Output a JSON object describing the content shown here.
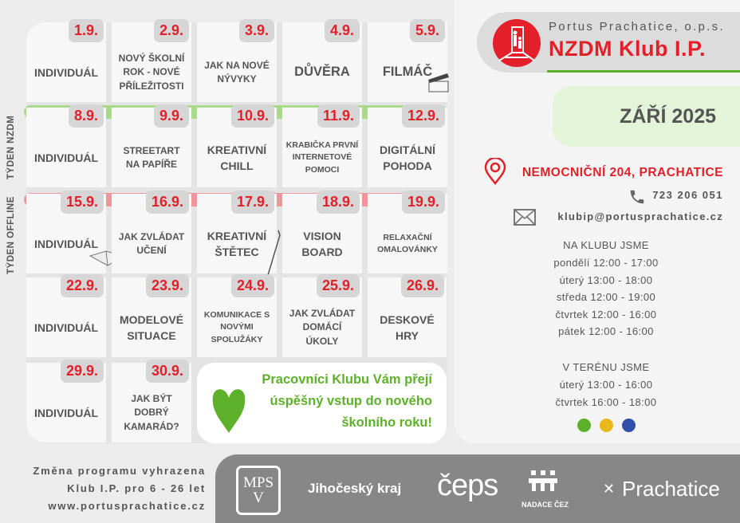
{
  "colors": {
    "accent_red": "#e3202a",
    "green": "#5db12a",
    "week_nzdm": "#a9d98a",
    "week_offline": "#f0959b"
  },
  "week_labels": {
    "nzdm": "TÝDEN NZDM",
    "offline": "TÝDEN OFFLINE"
  },
  "weeks": [
    [
      {
        "date": "1.9.",
        "title": "INDIVIDUÁL",
        "size": ""
      },
      {
        "date": "2.9.",
        "title": "NOVÝ ŠKOLNÍ\nROK - NOVÉ\nPŘÍLEŽITOSTI",
        "size": "sm"
      },
      {
        "date": "3.9.",
        "title": "JAK NA NOVÉ\nNÝVYKY",
        "size": "sm"
      },
      {
        "date": "4.9.",
        "title": "DŮVĚRA",
        "size": "lg"
      },
      {
        "date": "5.9.",
        "title": "FILMÁČ",
        "size": "lg",
        "icon": "clapperboard-icon"
      }
    ],
    [
      {
        "date": "8.9.",
        "title": "INDIVIDUÁL",
        "size": ""
      },
      {
        "date": "9.9.",
        "title": "STREETART\nNA PAPÍŘE",
        "size": "sm"
      },
      {
        "date": "10.9.",
        "title": "KREATIVNÍ\nCHILL",
        "size": ""
      },
      {
        "date": "11.9.",
        "title": "KRABIČKA PRVNÍ\nINTERNETOVÉ\nPOMOCI",
        "size": "xs"
      },
      {
        "date": "12.9.",
        "title": "DIGITÁLNÍ\nPOHODA",
        "size": ""
      }
    ],
    [
      {
        "date": "15.9.",
        "title": "INDIVIDUÁL",
        "size": "",
        "icon": "book-icon"
      },
      {
        "date": "16.9.",
        "title": "JAK ZVLÁDAT\nUČENÍ",
        "size": "sm"
      },
      {
        "date": "17.9.",
        "title": "KREATIVNÍ\nŠTĚTEC",
        "size": "",
        "icon": "paintbrush-icon"
      },
      {
        "date": "18.9.",
        "title": "VISION\nBOARD",
        "size": ""
      },
      {
        "date": "19.9.",
        "title": "RELAXAČNÍ\nOMALOVÁNKY",
        "size": "xs"
      }
    ],
    [
      {
        "date": "22.9.",
        "title": "INDIVIDUÁL",
        "size": ""
      },
      {
        "date": "23.9.",
        "title": "MODELOVÉ\nSITUACE",
        "size": ""
      },
      {
        "date": "24.9.",
        "title": "KOMUNIKACE S\nNOVÝMI\nSPOLUŽÁKY",
        "size": "xs"
      },
      {
        "date": "25.9.",
        "title": "JAK ZVLÁDAT\nDOMÁCÍ\nÚKOLY",
        "size": "sm"
      },
      {
        "date": "26.9.",
        "title": "DESKOVÉ\nHRY",
        "size": ""
      }
    ],
    [
      {
        "date": "29.9.",
        "title": "INDIVIDUÁL",
        "size": ""
      },
      {
        "date": "30.9.",
        "title": "JAK BÝT\nDOBRÝ\nKAMARÁD?",
        "size": "sm"
      }
    ]
  ],
  "greeting": "Pracovníci Klubu Vám přejí\núspěšný vstup do nového\nškolního roku!",
  "header": {
    "org": "Portus Prachatice, o.p.s.",
    "club": "NZDM Klub I.P."
  },
  "month": "ZÁŘÍ 2025",
  "contact": {
    "address": "NEMOCNIČNÍ 204, PRACHATICE",
    "phone": "723 206 051",
    "email": "klubip@portusprachatice.cz"
  },
  "hours_club": {
    "title": "NA KLUBU JSME",
    "lines": "pondělí 12:00 - 17:00\núterý 13:00 - 18:00\nstředa 12:00 - 19:00\nčtvrtek 12:00 - 16:00\npátek 12:00 - 16:00"
  },
  "hours_field": {
    "title": "V TERÉNU JSME",
    "lines": "úterý 13:00 - 16:00\nčtvrtek 16:00 - 18:00"
  },
  "footer": "Změna programu vyhrazena\nKlub I.P. pro  6 - 26  let\nwww.portusprachatice.cz",
  "sponsors": {
    "mpsv": "MPSV",
    "jihocesky": "Jihočeský kraj",
    "ceps": "čeps",
    "nadace_cez": "NADACE ČEZ",
    "prachatice": "Prachatice"
  }
}
